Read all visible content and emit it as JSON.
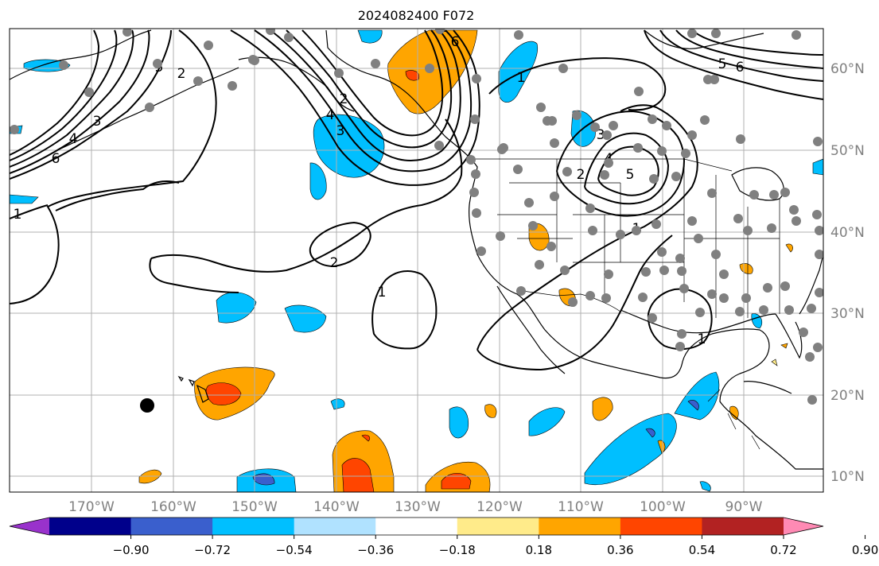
{
  "title": "2024082400 F072",
  "lon_labels": [
    "170°W",
    "160°W",
    "150°W",
    "140°W",
    "130°W",
    "120°W",
    "110°W",
    "100°W",
    "90°W"
  ],
  "lat_labels": [
    "60°N",
    "50°N",
    "40°N",
    "30°N",
    "20°N",
    "10°N"
  ],
  "colorbar": {
    "colors": [
      "#9932cc",
      "#00008b",
      "#3a5fcd",
      "#00bfff",
      "#b0e2ff",
      "#ffffff",
      "#ffeb8a",
      "#ffa500",
      "#ff4500",
      "#b22222",
      "#ff8ab4"
    ],
    "tick_labels": [
      "−0.90",
      "−0.72",
      "−0.54",
      "−0.36",
      "−0.18",
      "0.18",
      "0.36",
      "0.54",
      "0.72",
      "0.90"
    ]
  },
  "contour_labels": [
    "1",
    "2",
    "3",
    "4",
    "5",
    "6",
    "1",
    "2",
    "1",
    "1",
    "2",
    "3",
    "4",
    "5",
    "6",
    "1",
    "1",
    "2",
    "3",
    "4",
    "5",
    "6"
  ],
  "colors": {
    "grid": "#b0b0b0",
    "contour": "#000000",
    "label": "#808080"
  }
}
